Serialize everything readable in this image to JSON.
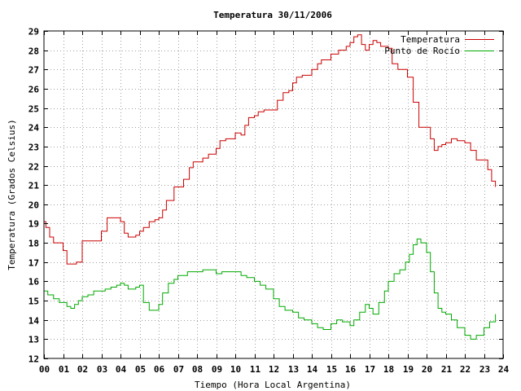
{
  "chart_data": {
    "type": "line",
    "title": "Temperatura 30/11/2006",
    "xlabel": "Tiempo (Hora Local Argentina)",
    "ylabel": "Temperatura (Grados Celsius)",
    "xlim": [
      0,
      24
    ],
    "ylim": [
      12,
      29
    ],
    "x_ticks": [
      "00",
      "01",
      "02",
      "03",
      "04",
      "05",
      "06",
      "07",
      "08",
      "09",
      "10",
      "11",
      "12",
      "13",
      "14",
      "15",
      "16",
      "17",
      "18",
      "19",
      "20",
      "21",
      "22",
      "23",
      "24"
    ],
    "y_ticks": [
      "12",
      "13",
      "14",
      "15",
      "16",
      "17",
      "18",
      "19",
      "20",
      "21",
      "22",
      "23",
      "24",
      "25",
      "26",
      "27",
      "28",
      "29"
    ],
    "grid": true,
    "legend_position": "top-right",
    "series": [
      {
        "name": "Temperatura",
        "color": "#cc0000",
        "x": [
          0.0,
          0.1,
          0.3,
          0.5,
          0.7,
          1.0,
          1.2,
          1.4,
          1.7,
          2.0,
          2.2,
          2.6,
          3.0,
          3.3,
          3.6,
          4.0,
          4.2,
          4.4,
          4.6,
          4.8,
          5.0,
          5.2,
          5.5,
          5.8,
          6.0,
          6.2,
          6.4,
          6.8,
          7.0,
          7.3,
          7.6,
          7.8,
          8.0,
          8.3,
          8.6,
          9.0,
          9.2,
          9.5,
          10.0,
          10.3,
          10.5,
          10.7,
          11.0,
          11.2,
          11.5,
          11.8,
          12.0,
          12.2,
          12.5,
          12.8,
          13.0,
          13.2,
          13.5,
          13.8,
          14.0,
          14.3,
          14.5,
          14.8,
          15.0,
          15.4,
          15.8,
          16.0,
          16.2,
          16.4,
          16.6,
          16.8,
          17.0,
          17.2,
          17.4,
          17.6,
          17.8,
          18.0,
          18.2,
          18.5,
          18.8,
          19.0,
          19.3,
          19.6,
          20.0,
          20.2,
          20.4,
          20.6,
          20.8,
          21.0,
          21.3,
          21.6,
          22.0,
          22.3,
          22.6,
          22.9,
          23.2,
          23.4,
          23.6
        ],
        "values": [
          19.1,
          18.8,
          18.3,
          18.0,
          18.0,
          17.6,
          16.9,
          16.9,
          17.0,
          18.1,
          18.1,
          18.1,
          18.6,
          19.3,
          19.3,
          19.1,
          18.5,
          18.3,
          18.3,
          18.4,
          18.6,
          18.8,
          19.1,
          19.2,
          19.3,
          19.7,
          20.2,
          20.9,
          20.9,
          21.3,
          21.9,
          22.2,
          22.2,
          22.4,
          22.6,
          22.9,
          23.3,
          23.4,
          23.7,
          23.6,
          24.1,
          24.5,
          24.6,
          24.8,
          24.9,
          24.9,
          24.9,
          25.4,
          25.8,
          25.9,
          26.3,
          26.6,
          26.7,
          26.7,
          27.0,
          27.3,
          27.5,
          27.5,
          27.8,
          28.0,
          28.2,
          28.4,
          28.7,
          28.8,
          28.3,
          28.0,
          28.3,
          28.5,
          28.4,
          28.2,
          28.2,
          28.1,
          27.3,
          27.0,
          27.0,
          26.6,
          25.3,
          24.0,
          24.0,
          23.4,
          22.8,
          23.0,
          23.1,
          23.2,
          23.4,
          23.3,
          23.2,
          22.8,
          22.3,
          22.3,
          21.8,
          21.2,
          20.9
        ]
      },
      {
        "name": "Punto de Rocío",
        "color": "#00aa00",
        "x": [
          0.0,
          0.2,
          0.5,
          0.8,
          1.0,
          1.2,
          1.4,
          1.6,
          1.8,
          2.0,
          2.3,
          2.6,
          2.9,
          3.2,
          3.5,
          3.8,
          4.0,
          4.2,
          4.4,
          4.6,
          4.8,
          5.0,
          5.2,
          5.5,
          5.8,
          6.0,
          6.2,
          6.5,
          6.8,
          7.0,
          7.2,
          7.5,
          7.8,
          8.0,
          8.3,
          8.6,
          9.0,
          9.3,
          9.6,
          10.0,
          10.3,
          10.6,
          11.0,
          11.3,
          11.6,
          12.0,
          12.3,
          12.6,
          13.0,
          13.3,
          13.6,
          14.0,
          14.3,
          14.6,
          15.0,
          15.3,
          15.6,
          16.0,
          16.2,
          16.5,
          16.8,
          17.0,
          17.2,
          17.5,
          17.8,
          18.0,
          18.3,
          18.6,
          18.9,
          19.1,
          19.3,
          19.5,
          19.7,
          20.0,
          20.2,
          20.4,
          20.6,
          20.8,
          21.0,
          21.3,
          21.6,
          22.0,
          22.3,
          22.6,
          23.0,
          23.3,
          23.6
        ],
        "values": [
          15.5,
          15.3,
          15.1,
          14.9,
          14.9,
          14.7,
          14.6,
          14.8,
          15.0,
          15.2,
          15.3,
          15.5,
          15.5,
          15.6,
          15.7,
          15.8,
          15.9,
          15.8,
          15.6,
          15.6,
          15.7,
          15.8,
          14.9,
          14.5,
          14.5,
          14.8,
          15.4,
          15.9,
          16.1,
          16.3,
          16.3,
          16.5,
          16.5,
          16.5,
          16.6,
          16.6,
          16.4,
          16.5,
          16.5,
          16.5,
          16.3,
          16.2,
          16.0,
          15.8,
          15.6,
          15.1,
          14.7,
          14.5,
          14.4,
          14.1,
          14.0,
          13.8,
          13.6,
          13.5,
          13.8,
          14.0,
          13.9,
          13.7,
          14.0,
          14.4,
          14.8,
          14.6,
          14.3,
          14.9,
          15.5,
          16.0,
          16.4,
          16.6,
          17.0,
          17.4,
          17.9,
          18.2,
          18.0,
          17.5,
          16.5,
          15.4,
          14.6,
          14.4,
          14.3,
          14.0,
          13.6,
          13.2,
          13.0,
          13.2,
          13.6,
          13.9,
          14.3
        ]
      }
    ]
  }
}
